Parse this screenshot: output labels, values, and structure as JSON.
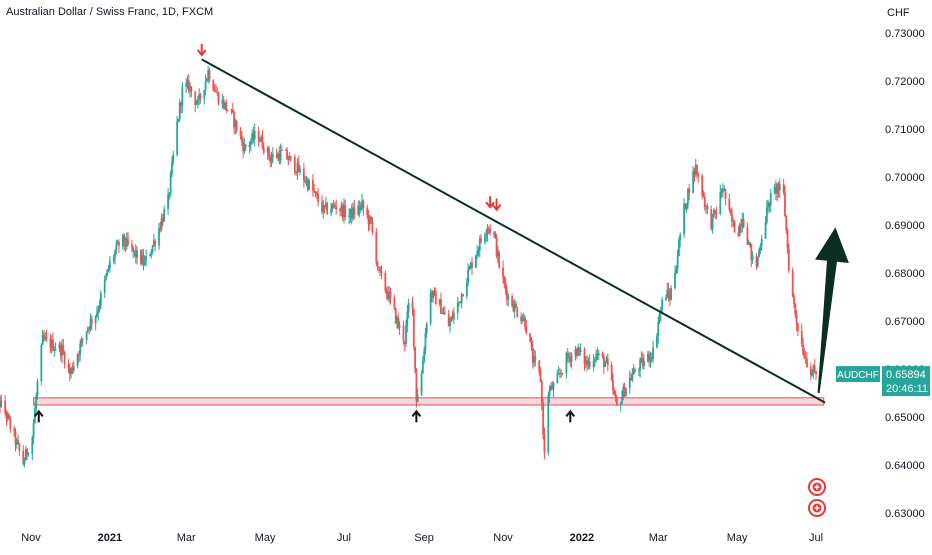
{
  "header": {
    "title": "Australian Dollar / Swiss Franc, 1D, FXCM"
  },
  "axis": {
    "currency": "CHF"
  },
  "price_label": {
    "symbol": "AUDCHF",
    "price": "0.65894",
    "countdown": "20:46:11"
  },
  "colors": {
    "up": "#26a69a",
    "down": "#ef5350",
    "trendline": "#0b2e1f",
    "zone_fill": "#f8c8cc",
    "zone_stroke": "#e0525e",
    "arrow_black": "#0a2f20",
    "marker_red": "#e53935",
    "price_tag": "#26a69a"
  },
  "chart_data": {
    "type": "candlestick",
    "title": "Australian Dollar / Swiss Franc, 1D, FXCM",
    "xlabel": "",
    "ylabel": "CHF",
    "ylim": [
      0.629,
      0.733
    ],
    "yticks": [
      "0.73000",
      "0.72000",
      "0.71000",
      "0.70000",
      "0.69000",
      "0.68000",
      "0.67000",
      "0.66000",
      "0.65000",
      "0.64000",
      "0.63000"
    ],
    "xticks": [
      {
        "label": "Nov",
        "date": "2020-11-01",
        "bold": false
      },
      {
        "label": "2021",
        "date": "2021-01-01",
        "bold": true
      },
      {
        "label": "Mar",
        "date": "2021-03-01",
        "bold": false
      },
      {
        "label": "May",
        "date": "2021-05-01",
        "bold": false
      },
      {
        "label": "Jul",
        "date": "2021-07-01",
        "bold": false
      },
      {
        "label": "Sep",
        "date": "2021-09-01",
        "bold": false
      },
      {
        "label": "Nov",
        "date": "2021-11-01",
        "bold": false
      },
      {
        "label": "2022",
        "date": "2022-01-01",
        "bold": true
      },
      {
        "label": "Mar",
        "date": "2022-03-01",
        "bold": false
      },
      {
        "label": "May",
        "date": "2022-05-01",
        "bold": false
      },
      {
        "label": "Jul",
        "date": "2022-07-01",
        "bold": false
      }
    ],
    "close_path": [
      [
        "2020-10-01",
        0.656
      ],
      [
        "2020-10-12",
        0.651
      ],
      [
        "2020-10-20",
        0.645
      ],
      [
        "2020-10-26",
        0.6405
      ],
      [
        "2020-11-02",
        0.646
      ],
      [
        "2020-11-06",
        0.657
      ],
      [
        "2020-11-10",
        0.666
      ],
      [
        "2020-11-18",
        0.665
      ],
      [
        "2020-11-25",
        0.664
      ],
      [
        "2020-12-01",
        0.659
      ],
      [
        "2020-12-08",
        0.664
      ],
      [
        "2020-12-15",
        0.669
      ],
      [
        "2020-12-22",
        0.672
      ],
      [
        "2021-01-01",
        0.682
      ],
      [
        "2021-01-10",
        0.687
      ],
      [
        "2021-01-20",
        0.684
      ],
      [
        "2021-01-28",
        0.682
      ],
      [
        "2021-02-05",
        0.687
      ],
      [
        "2021-02-15",
        0.695
      ],
      [
        "2021-02-22",
        0.711
      ],
      [
        "2021-02-26",
        0.718
      ],
      [
        "2021-03-03",
        0.719
      ],
      [
        "2021-03-10",
        0.715
      ],
      [
        "2021-03-18",
        0.722
      ],
      [
        "2021-03-25",
        0.717
      ],
      [
        "2021-04-05",
        0.713
      ],
      [
        "2021-04-15",
        0.706
      ],
      [
        "2021-04-25",
        0.709
      ],
      [
        "2021-05-05",
        0.704
      ],
      [
        "2021-05-15",
        0.705
      ],
      [
        "2021-05-25",
        0.702
      ],
      [
        "2021-06-05",
        0.698
      ],
      [
        "2021-06-15",
        0.693
      ],
      [
        "2021-06-25",
        0.694
      ],
      [
        "2021-07-05",
        0.692
      ],
      [
        "2021-07-15",
        0.694
      ],
      [
        "2021-07-22",
        0.69
      ],
      [
        "2021-07-28",
        0.68
      ],
      [
        "2021-08-05",
        0.675
      ],
      [
        "2021-08-12",
        0.669
      ],
      [
        "2021-08-17",
        0.666
      ],
      [
        "2021-08-22",
        0.678
      ],
      [
        "2021-08-26",
        0.654
      ],
      [
        "2021-08-30",
        0.659
      ],
      [
        "2021-09-05",
        0.676
      ],
      [
        "2021-09-12",
        0.674
      ],
      [
        "2021-09-20",
        0.669
      ],
      [
        "2021-09-28",
        0.674
      ],
      [
        "2021-10-05",
        0.68
      ],
      [
        "2021-10-12",
        0.685
      ],
      [
        "2021-10-20",
        0.69
      ],
      [
        "2021-10-25",
        0.688
      ],
      [
        "2021-10-30",
        0.68
      ],
      [
        "2021-11-05",
        0.675
      ],
      [
        "2021-11-12",
        0.672
      ],
      [
        "2021-11-18",
        0.67
      ],
      [
        "2021-11-24",
        0.662
      ],
      [
        "2021-11-30",
        0.658
      ],
      [
        "2021-12-03",
        0.642
      ],
      [
        "2021-12-06",
        0.655
      ],
      [
        "2021-12-12",
        0.657
      ],
      [
        "2021-12-20",
        0.662
      ],
      [
        "2021-12-28",
        0.664
      ],
      [
        "2022-01-05",
        0.661
      ],
      [
        "2022-01-12",
        0.663
      ],
      [
        "2022-01-20",
        0.661
      ],
      [
        "2022-01-28",
        0.652
      ],
      [
        "2022-02-05",
        0.657
      ],
      [
        "2022-02-12",
        0.66
      ],
      [
        "2022-02-20",
        0.662
      ],
      [
        "2022-02-26",
        0.664
      ],
      [
        "2022-03-01",
        0.67
      ],
      [
        "2022-03-06",
        0.676
      ],
      [
        "2022-03-10",
        0.675
      ],
      [
        "2022-03-15",
        0.682
      ],
      [
        "2022-03-20",
        0.692
      ],
      [
        "2022-03-25",
        0.698
      ],
      [
        "2022-03-30",
        0.702
      ],
      [
        "2022-04-05",
        0.696
      ],
      [
        "2022-04-10",
        0.69
      ],
      [
        "2022-04-15",
        0.693
      ],
      [
        "2022-04-20",
        0.698
      ],
      [
        "2022-04-25",
        0.692
      ],
      [
        "2022-05-01",
        0.688
      ],
      [
        "2022-05-05",
        0.692
      ],
      [
        "2022-05-10",
        0.686
      ],
      [
        "2022-05-15",
        0.68
      ],
      [
        "2022-05-20",
        0.688
      ],
      [
        "2022-05-26",
        0.695
      ],
      [
        "2022-06-01",
        0.698
      ],
      [
        "2022-06-06",
        0.696
      ],
      [
        "2022-06-11",
        0.678
      ],
      [
        "2022-06-16",
        0.67
      ],
      [
        "2022-06-21",
        0.664
      ],
      [
        "2022-06-26",
        0.66
      ],
      [
        "2022-07-01",
        0.6589
      ]
    ],
    "trendline": {
      "from": [
        "2021-03-13",
        0.7245
      ],
      "to": [
        "2022-07-08",
        0.653
      ]
    },
    "support_zone": {
      "from": "2020-11-03",
      "to": "2022-07-07",
      "low": 0.6525,
      "high": 0.654
    },
    "swing_highs": [
      {
        "date": "2021-03-13",
        "price": 0.7252
      },
      {
        "date": "2021-10-22",
        "price": 0.6935
      },
      {
        "date": "2021-10-27",
        "price": 0.693
      }
    ],
    "swing_lows": [
      {
        "date": "2020-11-07",
        "price": 0.6518
      },
      {
        "date": "2021-08-26",
        "price": 0.6518
      },
      {
        "date": "2021-12-23",
        "price": 0.6518
      }
    ],
    "projection_arrow": {
      "from": [
        "2022-07-03",
        0.655
      ],
      "to": [
        "2022-07-16",
        0.6895
      ]
    },
    "legend": {
      "position": "none"
    }
  }
}
